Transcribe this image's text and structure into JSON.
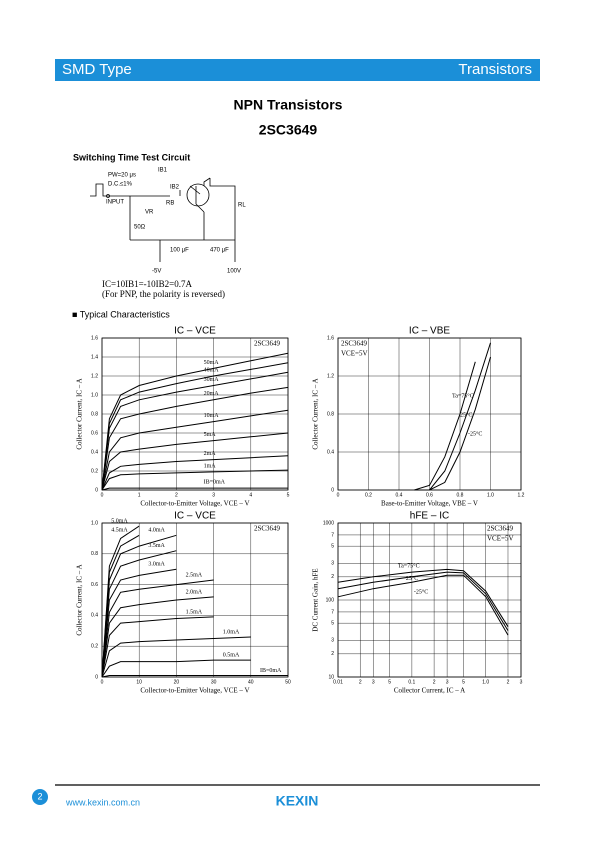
{
  "header": {
    "left": "SMD Type",
    "right": "Transistors"
  },
  "title": "NPN  Transistors",
  "part": "2SC3649",
  "circuit": {
    "heading": "Switching Time Test Circuit",
    "pw": "PW=20 μs",
    "dc": "D.C.≤1%",
    "input": "INPUT",
    "ib1": "IB1",
    "ib2": "IB2",
    "rb": "RB",
    "vr": "VR",
    "r50": "50Ω",
    "rl": "RL",
    "c1": "100 μF",
    "c2": "470 μF",
    "vneg": "-5V",
    "vpos": "100V",
    "formula": "IC=10IB1=-10IB2=0.7A",
    "note": "(For PNP, the polarity is reversed)"
  },
  "section": "■  Typical  Characteristics",
  "chart_data": [
    {
      "type": "line",
      "title": "IC  –  VCE",
      "xlabel": "Collector-to-Emitter Voltage, VCE  –  V",
      "ylabel": "Collector Current, IC  –  A",
      "annotations": [
        "2SC3649"
      ],
      "color": "#000000",
      "grid": true,
      "x": [
        0,
        0.2,
        0.5,
        1,
        2,
        3,
        4,
        5
      ],
      "xlim": [
        0,
        5
      ],
      "xticks": [
        0,
        1,
        2,
        3,
        4,
        5
      ],
      "ylim": [
        0,
        1.6
      ],
      "yticks": [
        0,
        0.2,
        0.4,
        0.6,
        0.8,
        {
          "value": 1,
          "label": "1.0"
        },
        1.2,
        1.4,
        1.6
      ],
      "series": [
        {
          "name": "50mA",
          "values": [
            0,
            0.75,
            1.0,
            1.1,
            1.2,
            1.28,
            1.36,
            1.44
          ]
        },
        {
          "name": "40mA",
          "values": [
            0,
            0.7,
            0.95,
            1.03,
            1.12,
            1.2,
            1.27,
            1.34
          ]
        },
        {
          "name": "30mA",
          "values": [
            0,
            0.65,
            0.88,
            0.95,
            1.03,
            1.1,
            1.17,
            1.24
          ]
        },
        {
          "name": "20mA",
          "values": [
            0,
            0.55,
            0.75,
            0.8,
            0.88,
            0.95,
            1.02,
            1.08
          ]
        },
        {
          "name": "10mA",
          "values": [
            0,
            0.4,
            0.55,
            0.6,
            0.66,
            0.72,
            0.78,
            0.84
          ]
        },
        {
          "name": "5mA",
          "values": [
            0,
            0.3,
            0.4,
            0.43,
            0.48,
            0.52,
            0.56,
            0.6
          ]
        },
        {
          "name": "2mA",
          "values": [
            0,
            0.18,
            0.25,
            0.27,
            0.3,
            0.32,
            0.34,
            0.36
          ]
        },
        {
          "name": "1mA",
          "values": [
            0,
            0.12,
            0.16,
            0.17,
            0.18,
            0.19,
            0.2,
            0.21
          ]
        },
        {
          "name": "IB=0mA",
          "values": [
            0,
            0.02,
            0.02,
            0.02,
            0.02,
            0.02,
            0.02,
            0.02
          ]
        }
      ]
    },
    {
      "type": "line",
      "title": "IC  –  VBE",
      "xlabel": "Base-to-Emitter Voltage, VBE  –  V",
      "ylabel": "Collector Current, IC  –  A",
      "annotations": [
        "2SC3649",
        "VCE=5V"
      ],
      "color": "#000000",
      "grid": true,
      "x": [
        0.5,
        0.6,
        0.7,
        0.8,
        0.9,
        1.0,
        1.1
      ],
      "xlim": [
        0,
        1.2
      ],
      "xticks": [
        0,
        0.2,
        0.4,
        0.6,
        0.8,
        {
          "value": 1,
          "label": "1.0"
        },
        1.2
      ],
      "ylim": [
        0,
        1.6
      ],
      "yticks": [
        0,
        0.4,
        0.8,
        1.2,
        1.6
      ],
      "series": [
        {
          "name": "Ta=75°C",
          "values": [
            0,
            0.05,
            0.35,
            0.8,
            1.35,
            null,
            null
          ]
        },
        {
          "name": "25°C",
          "values": [
            0,
            0,
            0.2,
            0.6,
            1.05,
            1.55,
            null
          ]
        },
        {
          "name": "-25°C",
          "values": [
            0,
            0,
            0.08,
            0.4,
            0.85,
            1.4,
            null
          ]
        }
      ]
    },
    {
      "type": "line",
      "title": "IC  –  VCE",
      "xlabel": "Collector-to-Emitter Voltage, VCE  –  V",
      "ylabel": "Collector Current, IC  –  A",
      "annotations": [
        "2SC3649"
      ],
      "color": "#000000",
      "grid": true,
      "x": [
        0,
        2,
        5,
        10,
        20,
        30,
        40,
        50
      ],
      "xlim": [
        0,
        50
      ],
      "xticks": [
        0,
        10,
        20,
        30,
        40,
        50
      ],
      "ylim": [
        0,
        1
      ],
      "yticks": [
        0,
        0.2,
        0.4,
        0.6,
        0.8,
        {
          "value": 1,
          "label": "1.0"
        }
      ],
      "series": [
        {
          "name": "5.0mA",
          "values": [
            0,
            0.72,
            0.9,
            0.98,
            null,
            null,
            null,
            null
          ]
        },
        {
          "name": "4.5mA",
          "values": [
            0,
            0.68,
            0.85,
            0.92,
            null,
            null,
            null,
            null
          ]
        },
        {
          "name": "4.0mA",
          "values": [
            0,
            0.63,
            0.8,
            0.85,
            0.92,
            null,
            null,
            null
          ]
        },
        {
          "name": "3.5mA",
          "values": [
            0,
            0.57,
            0.72,
            0.76,
            0.82,
            null,
            null,
            null
          ]
        },
        {
          "name": "3.0mA",
          "values": [
            0,
            0.5,
            0.63,
            0.66,
            0.7,
            null,
            null,
            null
          ]
        },
        {
          "name": "2.5mA",
          "values": [
            0,
            0.42,
            0.55,
            0.57,
            0.6,
            0.63,
            null,
            null
          ]
        },
        {
          "name": "2.0mA",
          "values": [
            0,
            0.35,
            0.45,
            0.47,
            0.5,
            0.52,
            null,
            null
          ]
        },
        {
          "name": "1.5mA",
          "values": [
            0,
            0.27,
            0.35,
            0.36,
            0.38,
            0.39,
            null,
            null
          ]
        },
        {
          "name": "1.0mA",
          "values": [
            0,
            0.17,
            0.22,
            0.23,
            0.24,
            0.25,
            0.26,
            null
          ]
        },
        {
          "name": "0.5mA",
          "values": [
            0,
            0.07,
            0.1,
            0.1,
            0.1,
            0.11,
            0.11,
            null
          ]
        },
        {
          "name": "IB=0mA",
          "values": [
            0,
            0.01,
            0.01,
            0.01,
            0.01,
            0.01,
            0.01,
            0.01
          ]
        }
      ]
    },
    {
      "type": "line",
      "title": "hFE  –  IC",
      "xlabel": "Collector Current, IC  –  A",
      "ylabel": "DC Current Gain, hFE",
      "annotations": [
        "2SC3649",
        "VCE=5V"
      ],
      "color": "#000000",
      "grid": true,
      "xlog": true,
      "ylog": true,
      "x": [
        0.01,
        0.03,
        0.1,
        0.3,
        0.5,
        1,
        2
      ],
      "xlim": [
        0.01,
        3
      ],
      "xticks": [
        0.01,
        {
          "value": 0.02,
          "label": "2"
        },
        {
          "value": 0.03,
          "label": "3"
        },
        {
          "value": 0.05,
          "label": "5"
        },
        0.1,
        {
          "value": 0.2,
          "label": "2"
        },
        {
          "value": 0.3,
          "label": "3"
        },
        {
          "value": 0.5,
          "label": "5"
        },
        {
          "value": 1,
          "label": "1.0"
        },
        2,
        3
      ],
      "ylim": [
        10,
        1000
      ],
      "yticks": [
        10,
        {
          "value": 20,
          "label": "2"
        },
        {
          "value": 30,
          "label": "3"
        },
        {
          "value": 50,
          "label": "5"
        },
        {
          "value": 70,
          "label": "7"
        },
        100,
        {
          "value": 200,
          "label": "2"
        },
        {
          "value": 300,
          "label": "3"
        },
        {
          "value": 500,
          "label": "5"
        },
        {
          "value": 700,
          "label": "7"
        },
        1000
      ],
      "series": [
        {
          "name": "Ta=75°C",
          "values": [
            170,
            200,
            230,
            250,
            240,
            130,
            45
          ]
        },
        {
          "name": "25°C",
          "values": [
            140,
            170,
            200,
            230,
            225,
            120,
            40
          ]
        },
        {
          "name": "-25°C",
          "values": [
            110,
            140,
            170,
            210,
            210,
            110,
            35
          ]
        }
      ]
    }
  ],
  "footer": {
    "page": "2",
    "url": "www.kexin.com.cn",
    "brand": "KEXIN"
  }
}
